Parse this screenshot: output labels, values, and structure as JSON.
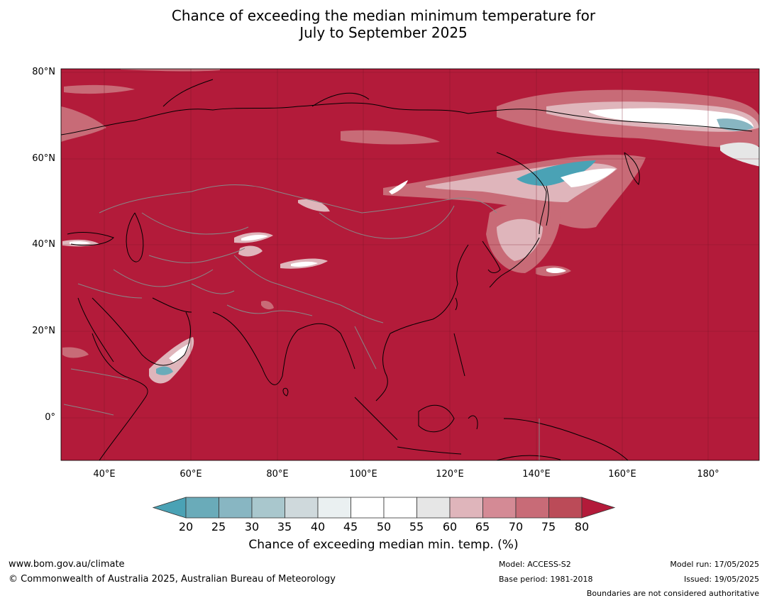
{
  "title": {
    "line1": "Chance of exceeding the median minimum temperature for",
    "line2": "July to September 2025"
  },
  "map": {
    "lat_labels": [
      "80°N",
      "60°N",
      "40°N",
      "20°N",
      "0°"
    ],
    "lon_labels": [
      "40°E",
      "60°E",
      "80°E",
      "100°E",
      "120°E",
      "140°E",
      "160°E",
      "180°"
    ],
    "base_color": "#b31b3a"
  },
  "colorbar": {
    "ticks": [
      "20",
      "25",
      "30",
      "35",
      "40",
      "45",
      "50",
      "55",
      "60",
      "65",
      "70",
      "75",
      "80"
    ],
    "colors": [
      "#6aabb9",
      "#88b6c2",
      "#a9c7cd",
      "#cfd9dc",
      "#eaf0f1",
      "#ffffff",
      "#ffffff",
      "#e6e6e6",
      "#dfb5bb",
      "#d48a95",
      "#c86b77",
      "#bb4b58"
    ],
    "low_color": "#4aa2b5",
    "high_color": "#b31b3a",
    "label": "Chance of exceeding median min. temp. (%)"
  },
  "footer": {
    "website": "www.bom.gov.au/climate",
    "copyright": "© Commonwealth of Australia 2025, Australian Bureau of Meteorology",
    "model": "Model: ACCESS-S2",
    "base_period": "Base period: 1981-2018",
    "model_run": "Model run: 17/05/2025",
    "issued": "Issued: 19/05/2025",
    "boundaries": "Boundaries are not considered authoritative"
  }
}
